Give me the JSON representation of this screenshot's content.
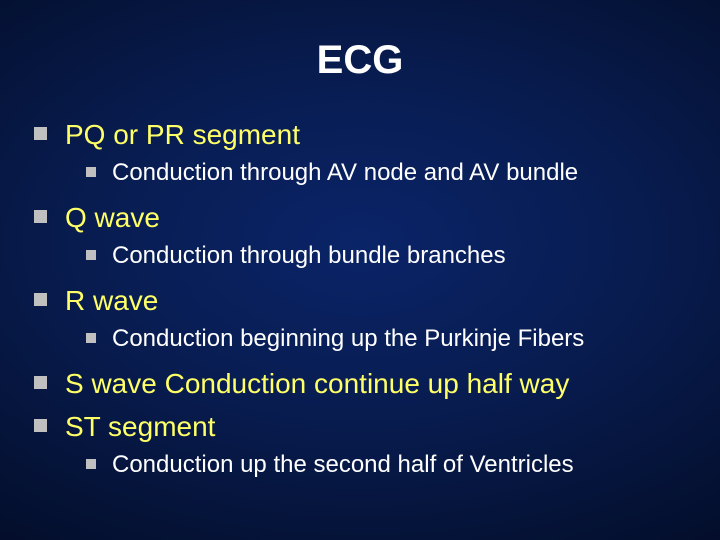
{
  "slide": {
    "title": "ECG",
    "background_center": "#0a2468",
    "background_edge": "#020618",
    "title_color": "#ffffff",
    "title_fontsize": 40,
    "level1_color": "#ffff66",
    "level1_fontsize": 28,
    "level2_color": "#ffffff",
    "level2_fontsize": 24,
    "bullet_color": "#c0c0c0",
    "items": [
      {
        "text": "PQ or PR segment",
        "children": [
          {
            "text": "Conduction through AV node and AV bundle"
          }
        ]
      },
      {
        "text": "Q wave",
        "children": [
          {
            "text": "Conduction through bundle branches"
          }
        ]
      },
      {
        "text": "R wave",
        "children": [
          {
            "text": "Conduction beginning up the Purkinje Fibers"
          }
        ]
      },
      {
        "text": "S wave Conduction continue up half way",
        "children": []
      },
      {
        "text": "ST segment",
        "children": [
          {
            "text": "Conduction up the second half of Ventricles"
          }
        ]
      }
    ]
  }
}
